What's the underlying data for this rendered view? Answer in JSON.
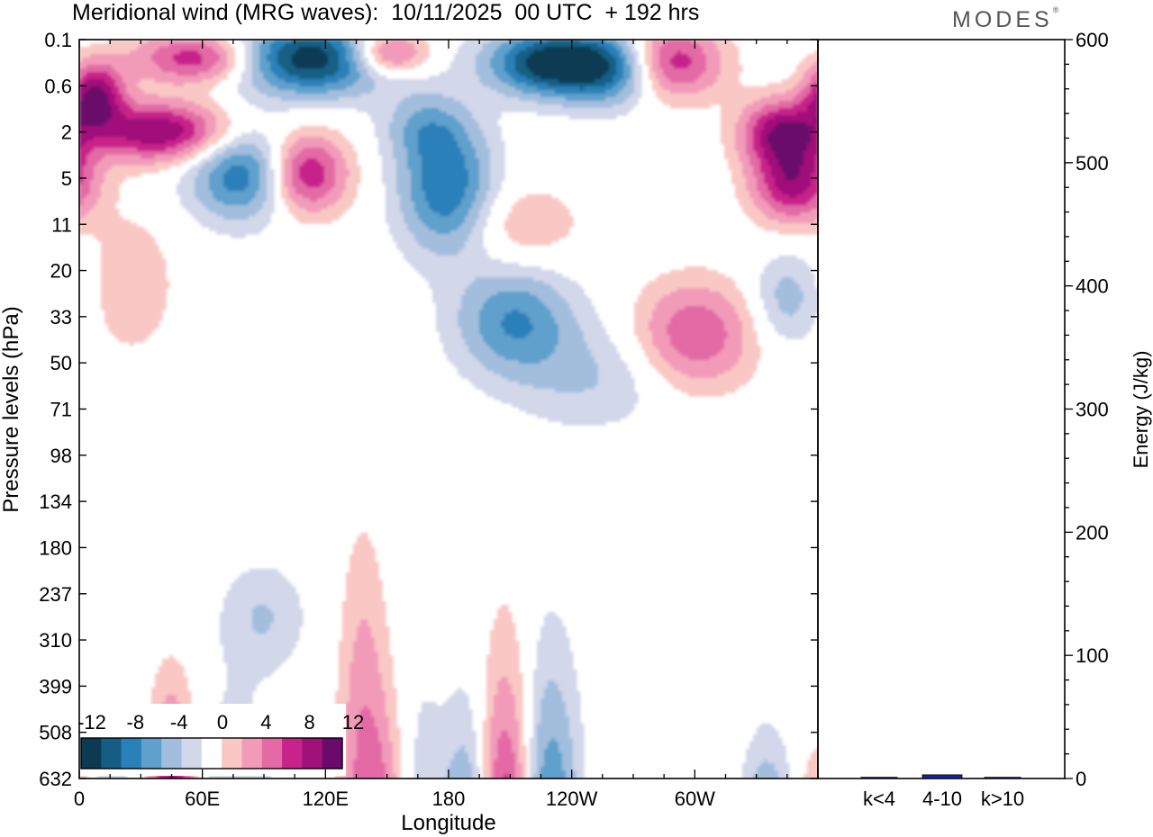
{
  "header": {
    "title": "Meridional wind (MRG waves):  10/11/2025  00 UTC  + 192 hrs",
    "logo": "MODES",
    "logo_mark": "®"
  },
  "colors": {
    "neg": [
      "#0b3a52",
      "#145e85",
      "#2a80b8",
      "#5fa0cc",
      "#a3bedd",
      "#d2d7ea"
    ],
    "zero": "#ffffff",
    "pos": [
      "#fac8c4",
      "#f29bb9",
      "#e36aa5",
      "#c7238a",
      "#a1117a",
      "#6a0a6b"
    ],
    "bar": "#1a22a0"
  },
  "chart_data": [
    {
      "type": "heatmap",
      "title": "Meridional wind (MRG waves):  10/11/2025  00 UTC  + 192 hrs",
      "xlabel": "Longitude",
      "ylabel": "Pressure levels (hPa)",
      "x_ticks": [
        "0",
        "60E",
        "120E",
        "180",
        "120W",
        "60W"
      ],
      "x_tick_values": [
        0,
        60,
        120,
        180,
        240,
        300
      ],
      "xlim": [
        0,
        360
      ],
      "y_ticks": [
        "0.1",
        "0.6",
        "2",
        "5",
        "11",
        "20",
        "33",
        "50",
        "71",
        "98",
        "134",
        "180",
        "237",
        "310",
        "399",
        "508",
        "632"
      ],
      "colorbar": {
        "levels": [
          -12,
          -10,
          -8,
          -6,
          -4,
          -2,
          0,
          2,
          4,
          6,
          8,
          10,
          12
        ],
        "labels": [
          "-12",
          "-8",
          "-4",
          "0",
          "4",
          "8",
          "12"
        ],
        "label_values": [
          -12,
          -8,
          -4,
          0,
          4,
          8,
          12
        ]
      },
      "features": [
        {
          "lon": 8,
          "lev": 1.2,
          "v": 11,
          "wx": 10,
          "wy": 0.5
        },
        {
          "lon": 40,
          "lev": 2.0,
          "v": 11,
          "wx": 24,
          "wy": 0.45
        },
        {
          "lon": 60,
          "lev": 0.4,
          "v": 10,
          "wx": 22,
          "wy": 0.4
        },
        {
          "lon": 112,
          "lev": 0.4,
          "v": -13,
          "wx": 30,
          "wy": 0.55
        },
        {
          "lon": 150,
          "lev": 0.3,
          "v": 10,
          "wx": 14,
          "wy": 0.35
        },
        {
          "lon": 80,
          "lev": 2.9,
          "v": -9,
          "wx": 18,
          "wy": 0.7
        },
        {
          "lon": 110,
          "lev": 2.9,
          "v": 10,
          "wx": 14,
          "wy": 0.6
        },
        {
          "lon": 179,
          "lev": 3.2,
          "v": -9,
          "wx": 16,
          "wy": 1.0
        },
        {
          "lon": 168,
          "lev": 1.9,
          "v": -4,
          "wx": 14,
          "wy": 0.5
        },
        {
          "lon": 262,
          "lev": 0.6,
          "v": -11,
          "wx": 18,
          "wy": 0.55
        },
        {
          "lon": 228,
          "lev": 0.5,
          "v": -12,
          "wx": 20,
          "wy": 0.5
        },
        {
          "lon": 285,
          "lev": 0.5,
          "v": 11,
          "wx": 18,
          "wy": 0.55
        },
        {
          "lon": 342,
          "lev": 2.0,
          "v": 10,
          "wx": 14,
          "wy": 0.5
        },
        {
          "lon": 348,
          "lev": 3.1,
          "v": 10,
          "wx": 14,
          "wy": 0.6
        },
        {
          "lon": 212,
          "lev": 6.1,
          "v": -7,
          "wx": 20,
          "wy": 0.8
        },
        {
          "lon": 300,
          "lev": 6.4,
          "v": 7,
          "wx": 20,
          "wy": 0.8
        },
        {
          "lon": 250,
          "lev": 7.3,
          "v": -3,
          "wx": 28,
          "wy": 0.8
        },
        {
          "lon": 345,
          "lev": 5.6,
          "v": -4,
          "wx": 12,
          "wy": 0.7
        },
        {
          "lon": 25,
          "lev": 5.3,
          "v": 3,
          "wx": 14,
          "wy": 1.0
        },
        {
          "lon": 215,
          "lev": 4.0,
          "v": 3,
          "wx": 20,
          "wy": 0.6
        },
        {
          "lon": 90,
          "lev": 12.5,
          "v": -3,
          "wx": 14,
          "wy": 0.8
        },
        {
          "lon": 138,
          "lev": 14.0,
          "v": 3,
          "wx": 8,
          "wy": 2.5
        },
        {
          "lon": 45,
          "lev": 17.3,
          "v": 12,
          "wx": 8,
          "wy": 1.9
        },
        {
          "lon": 54,
          "lev": 20.5,
          "v": 9,
          "wx": 6,
          "wy": 2.0
        },
        {
          "lon": 12,
          "lev": 18.5,
          "v": -4,
          "wx": 12,
          "wy": 2.5
        },
        {
          "lon": 75,
          "lev": 18.0,
          "v": -4,
          "wx": 14,
          "wy": 2.5
        },
        {
          "lon": 145,
          "lev": 18.3,
          "v": 8,
          "wx": 11,
          "wy": 2.5
        },
        {
          "lon": 189,
          "lev": 20.2,
          "v": -14,
          "wx": 8,
          "wy": 2.9
        },
        {
          "lon": 208,
          "lev": 19.5,
          "v": 14,
          "wx": 9,
          "wy": 3.4
        },
        {
          "lon": 229,
          "lev": 18.2,
          "v": -9,
          "wx": 10,
          "wy": 3.0
        },
        {
          "lon": 166,
          "lev": 18.5,
          "v": -4,
          "wx": 9,
          "wy": 3.0
        },
        {
          "lon": 262,
          "lev": 20.6,
          "v": 13,
          "wx": 9,
          "wy": 1.9
        },
        {
          "lon": 280,
          "lev": 20.5,
          "v": -4,
          "wx": 8,
          "wy": 2.4
        },
        {
          "lon": 300,
          "lev": 19.5,
          "v": 3,
          "wx": 14,
          "wy": 2.5
        },
        {
          "lon": 335,
          "lev": 18.5,
          "v": -11,
          "wx": 9,
          "wy": 1.8
        },
        {
          "lon": 355,
          "lev": 21.0,
          "v": 11,
          "wx": 8,
          "wy": 2.5
        },
        {
          "lon": 1,
          "lev": 18.0,
          "v": 8,
          "wx": 5,
          "wy": 1.5
        }
      ]
    },
    {
      "type": "bar",
      "categories": [
        "k<4",
        "4-10",
        "k>10"
      ],
      "values": [
        1,
        3,
        1
      ],
      "ylabel": "Energy (J/kg)",
      "ylim": [
        0,
        600
      ],
      "y_ticks": [
        "0",
        "100",
        "200",
        "300",
        "400",
        "500",
        "600"
      ],
      "y_tick_values": [
        0,
        100,
        200,
        300,
        400,
        500,
        600
      ]
    }
  ]
}
